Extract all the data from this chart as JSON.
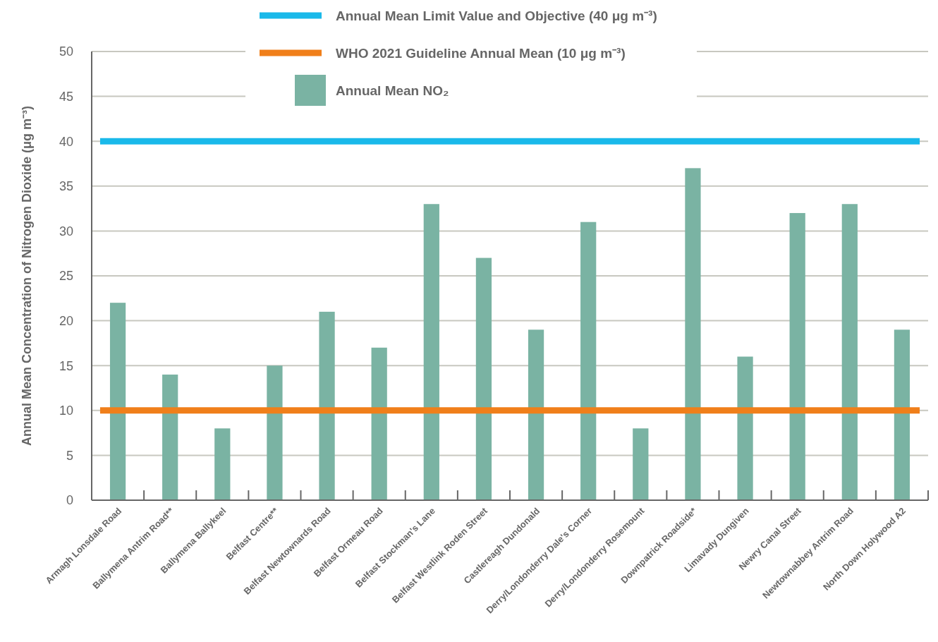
{
  "chart_data": {
    "type": "bar",
    "ylabel": "Annual Mean Concentration of Nitrogen Dioxide (μg m⁻³)",
    "categories": [
      "Armagh Lonsdale Road",
      "Ballymena Antrim Road**",
      "Ballymena Ballykeel",
      "Belfast Centre**",
      "Belfast Newtownards Road",
      "Belfast Ormeau Road",
      "Belfast Stockman's Lane",
      "Belfast Westlink Roden Street",
      "Castlereagh Dundonald",
      "Derry/Londonderry Dale's Corner",
      "Derry/Londonderry Rosemount",
      "Downpatrick Roadside*",
      "Limavady Dungiven",
      "Newry Canal Street",
      "Newtownabbey Antrim Road",
      "North Down Holywood A2"
    ],
    "series": [
      {
        "name": "Annual Mean NO₂",
        "color": "#7ab3a3",
        "values": [
          22,
          14,
          8,
          15,
          21,
          17,
          33,
          27,
          19,
          31,
          8,
          37,
          16,
          32,
          33,
          19
        ]
      }
    ],
    "ref_lines": [
      {
        "axis": "y",
        "value": 40,
        "label": "Annual Mean Limit Value and Objective (40 μg m⁻³)",
        "color": "#1ab9ea"
      },
      {
        "axis": "y",
        "value": 10,
        "label": "WHO 2021 Guideline Annual Mean (10 μg m⁻³)",
        "color": "#f07f1a"
      }
    ],
    "ylim": [
      0,
      50
    ],
    "yticks": [
      0,
      5,
      10,
      15,
      20,
      25,
      30,
      35,
      40,
      45,
      50
    ],
    "grid": "y",
    "legend": "top"
  }
}
